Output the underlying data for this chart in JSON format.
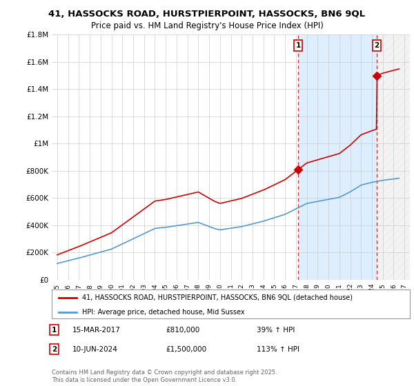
{
  "title": "41, HASSOCKS ROAD, HURSTPIERPOINT, HASSOCKS, BN6 9QL",
  "subtitle": "Price paid vs. HM Land Registry's House Price Index (HPI)",
  "legend_label_red": "41, HASSOCKS ROAD, HURSTPIERPOINT, HASSOCKS, BN6 9QL (detached house)",
  "legend_label_blue": "HPI: Average price, detached house, Mid Sussex",
  "annotation1_date": "15-MAR-2017",
  "annotation1_price": "£810,000",
  "annotation1_hpi": "39% ↑ HPI",
  "annotation2_date": "10-JUN-2024",
  "annotation2_price": "£1,500,000",
  "annotation2_hpi": "113% ↑ HPI",
  "footer": "Contains HM Land Registry data © Crown copyright and database right 2025.\nThis data is licensed under the Open Government Licence v3.0.",
  "red_color": "#cc0000",
  "blue_color": "#5599cc",
  "shade_color": "#ddeeff",
  "hatch_color": "#cccccc",
  "grid_color": "#cccccc",
  "background_color": "#ffffff",
  "sale1_year": 2017.21,
  "sale1_price": 810000,
  "sale2_year": 2024.44,
  "sale2_price": 1500000,
  "ylim": [
    0,
    1800000
  ],
  "xlim_start": 1994.5,
  "xlim_end": 2027.5,
  "yticks": [
    0,
    200000,
    400000,
    600000,
    800000,
    1000000,
    1200000,
    1400000,
    1600000,
    1800000
  ],
  "xticks": [
    1995,
    1996,
    1997,
    1998,
    1999,
    2000,
    2001,
    2002,
    2003,
    2004,
    2005,
    2006,
    2007,
    2008,
    2009,
    2010,
    2011,
    2012,
    2013,
    2014,
    2015,
    2016,
    2017,
    2018,
    2019,
    2020,
    2021,
    2022,
    2023,
    2024,
    2025,
    2026,
    2027
  ]
}
